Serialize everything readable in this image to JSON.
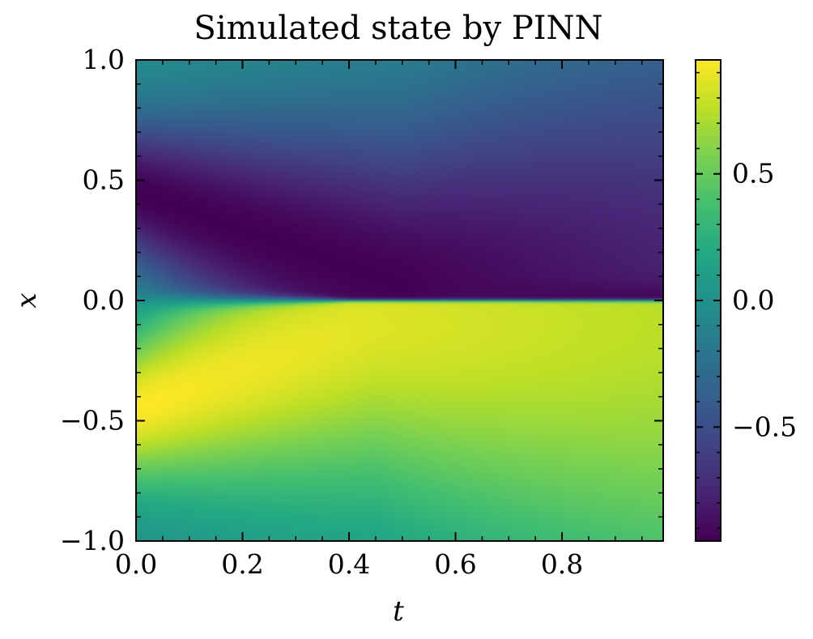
{
  "chart_data": {
    "type": "heatmap",
    "title": "Simulated state by PINN",
    "xlabel": "t",
    "ylabel": "x",
    "xlim": [
      0.0,
      0.99
    ],
    "ylim": [
      -1.0,
      1.0
    ],
    "x_ticks": [
      0.0,
      0.2,
      0.4,
      0.6,
      0.8
    ],
    "x_tick_labels": [
      "0.0",
      "0.2",
      "0.4",
      "0.6",
      "0.8"
    ],
    "y_ticks": [
      -1.0,
      -0.5,
      0.0,
      0.5,
      1.0
    ],
    "y_tick_labels": [
      "−1.0",
      "−0.5",
      "0.0",
      "0.5",
      "1.0"
    ],
    "colormap": "viridis",
    "colorbar": {
      "range": [
        -0.95,
        0.95
      ],
      "ticks": [
        -0.5,
        0.0,
        0.5
      ],
      "tick_labels": [
        "−0.5",
        "0.0",
        "0.5"
      ]
    },
    "description_of_field": "u(t,x): negative for x>0, positive for x<0, sharp shock at x=0; extremes near x=±0.45 at t=0, shifting toward 0 over time",
    "grid": false
  },
  "colors": {
    "viridis_low": "#440154",
    "viridis_mid": "#21918c",
    "viridis_high": "#fde725"
  }
}
